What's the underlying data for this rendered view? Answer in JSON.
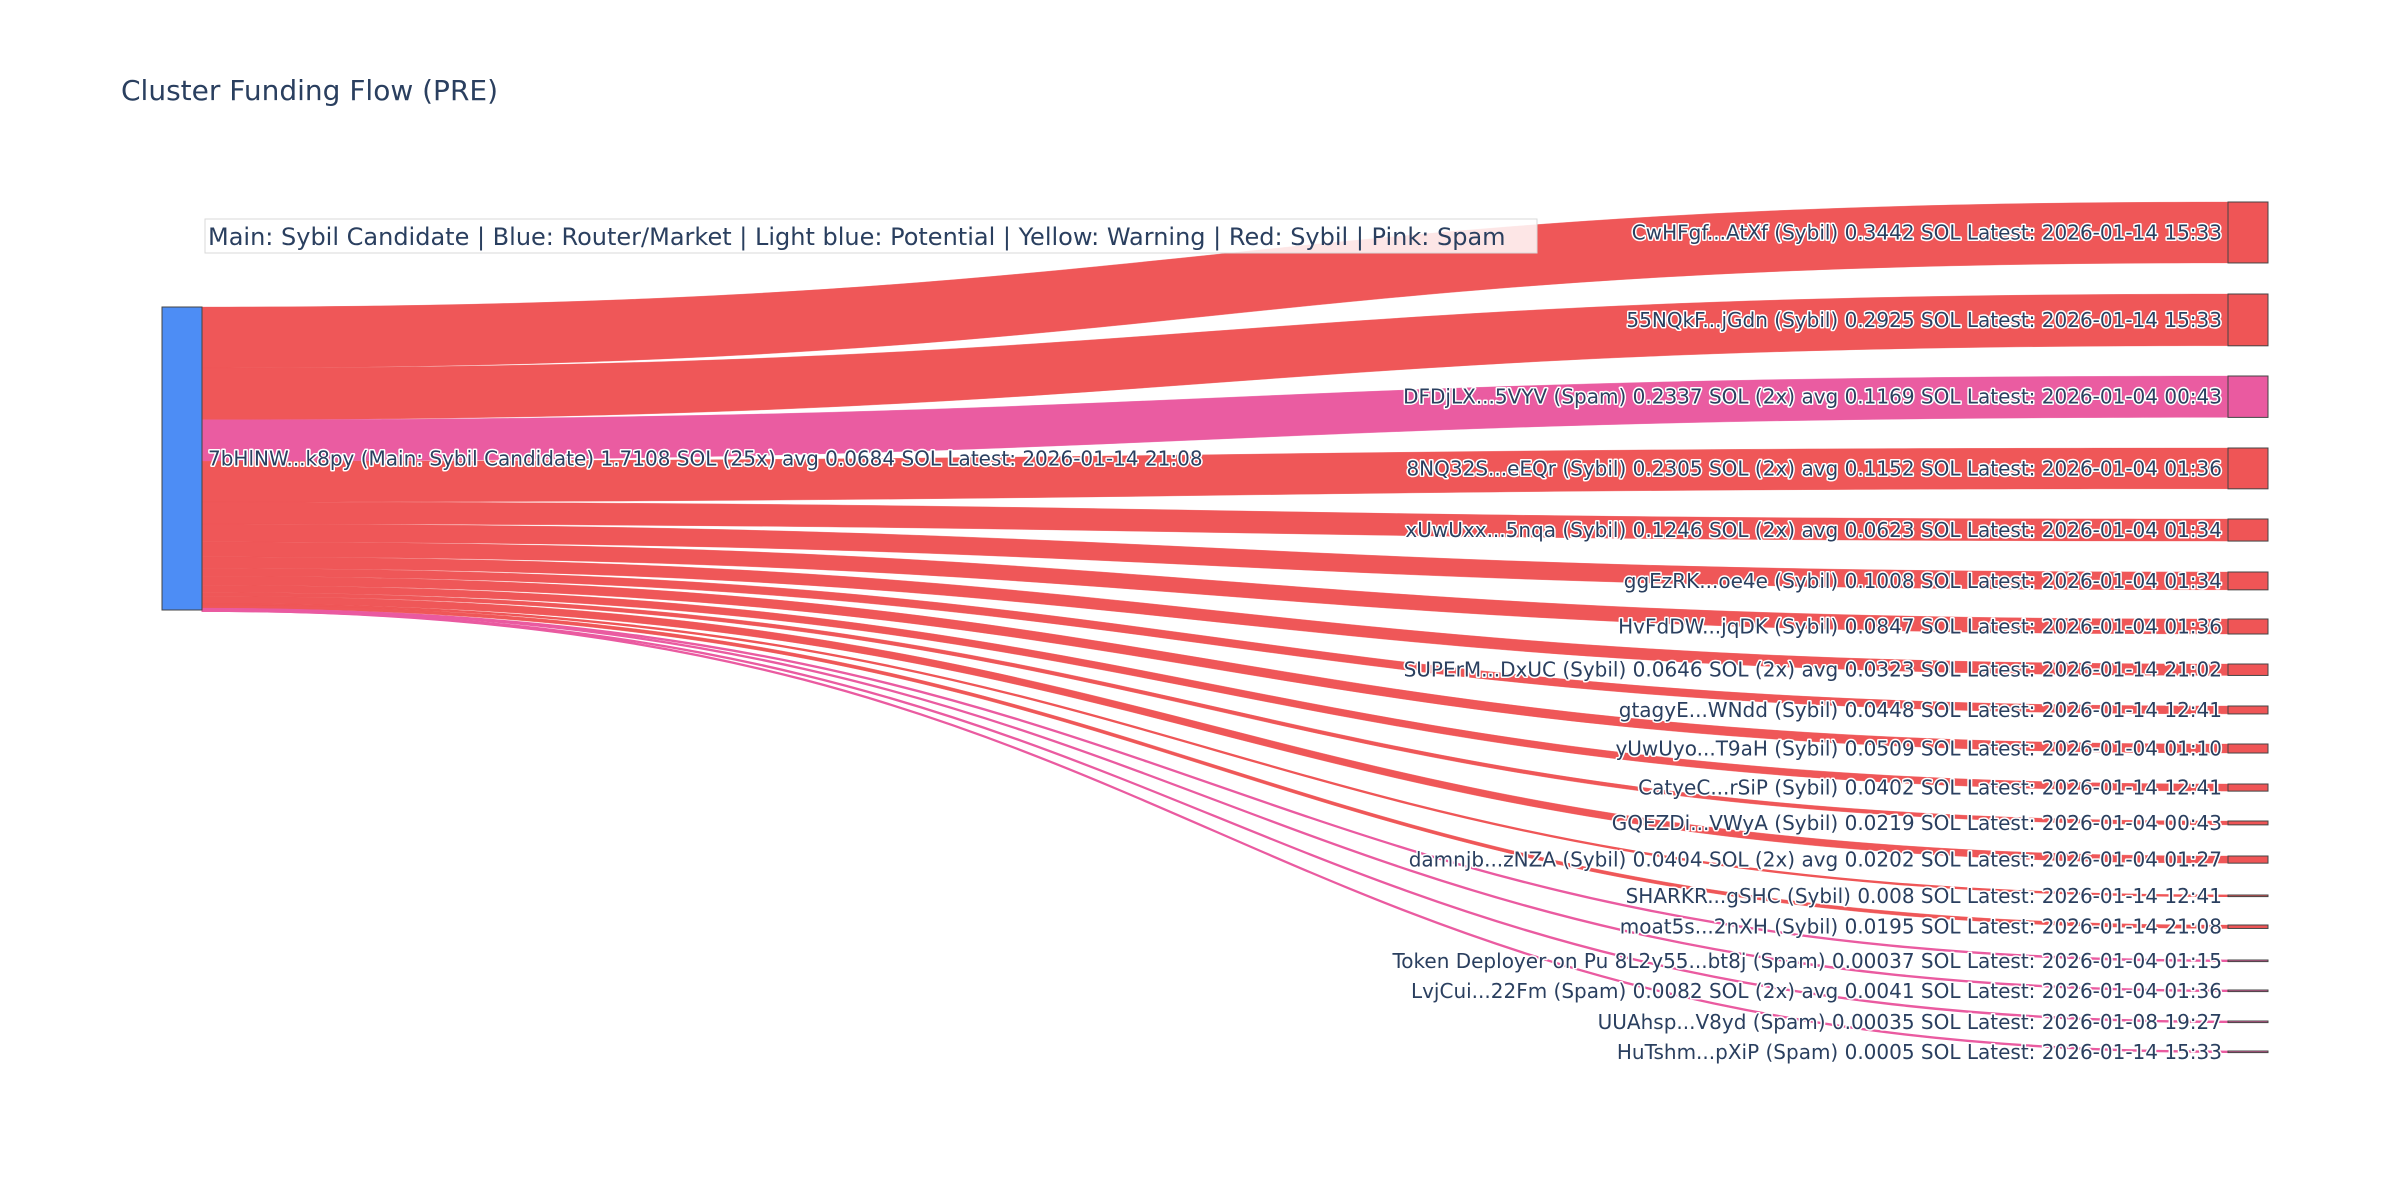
{
  "chart_data": {
    "type": "sankey",
    "title": "Cluster Funding Flow (PRE)",
    "annotation": "Main: Sybil Candidate  |  Blue: Router/Market | Light blue: Potential | Yellow: Warning | Red: Sybil | Pink: Spam",
    "colors": {
      "router": "#4d8df5",
      "sybil": "#ef5556",
      "spam": "#ea5aa0",
      "label": "#2a3f5f"
    },
    "source": {
      "label": "7bHlNW...k8py (Main: Sybil Candidate) 1.7108 SOL (25x) avg 0.0684 SOL Latest: 2026-01-14 21:08",
      "category": "router",
      "value": 1.7108
    },
    "targets": [
      {
        "label": "CwHFgf...AtXf (Sybil) 0.3442 SOL Latest: 2026-01-14 15:33",
        "value": 0.3442,
        "category": "sybil"
      },
      {
        "label": "55NQkF...jGdn (Sybil) 0.2925 SOL Latest: 2026-01-14 15:33",
        "value": 0.2925,
        "category": "sybil"
      },
      {
        "label": "DFDjLX...5VYV (Spam) 0.2337 SOL (2x) avg 0.1169 SOL Latest: 2026-01-04 00:43",
        "value": 0.2337,
        "category": "spam"
      },
      {
        "label": "8NQ32S...eEQr (Sybil) 0.2305 SOL (2x) avg 0.1152 SOL Latest: 2026-01-04 01:36",
        "value": 0.2305,
        "category": "sybil"
      },
      {
        "label": "xUwUxx...5nqa (Sybil) 0.1246 SOL (2x) avg 0.0623 SOL Latest: 2026-01-04 01:34",
        "value": 0.1246,
        "category": "sybil"
      },
      {
        "label": "ggEzRK...oe4e (Sybil) 0.1008 SOL Latest: 2026-01-04 01:34",
        "value": 0.1008,
        "category": "sybil"
      },
      {
        "label": "HvFdDW...jqDK (Sybil) 0.0847 SOL Latest: 2026-01-04 01:36",
        "value": 0.0847,
        "category": "sybil"
      },
      {
        "label": "SUPErM...DxUC (Sybil) 0.0646 SOL (2x) avg 0.0323 SOL Latest: 2026-01-14 21:02",
        "value": 0.0646,
        "category": "sybil"
      },
      {
        "label": "gtagyE...WNdd (Sybil) 0.0448 SOL Latest: 2026-01-14 12:41",
        "value": 0.0448,
        "category": "sybil"
      },
      {
        "label": "yUwUyo...T9aH (Sybil) 0.0509 SOL Latest: 2026-01-04 01:10",
        "value": 0.0509,
        "category": "sybil"
      },
      {
        "label": "CatyeC...rSiP (Sybil) 0.0402 SOL Latest: 2026-01-14 12:41",
        "value": 0.0402,
        "category": "sybil"
      },
      {
        "label": "GQEZDi...VWyA (Sybil) 0.0219 SOL Latest: 2026-01-04 00:43",
        "value": 0.0219,
        "category": "sybil"
      },
      {
        "label": "damnjb...zNZA (Sybil) 0.0404 SOL (2x) avg 0.0202 SOL Latest: 2026-01-04 01:27",
        "value": 0.0404,
        "category": "sybil"
      },
      {
        "label": "SHARKR...gSHC (Sybil) 0.008 SOL Latest: 2026-01-14 12:41",
        "value": 0.008,
        "category": "sybil"
      },
      {
        "label": "moat5s...2nXH (Sybil) 0.0195 SOL Latest: 2026-01-14 21:08",
        "value": 0.0195,
        "category": "sybil"
      },
      {
        "label": "Token Deployer on Pu 8L2y55...bt8j (Spam) 0.00037 SOL Latest: 2026-01-04 01:15",
        "value": 0.00037,
        "category": "spam"
      },
      {
        "label": "LvjCui...22Fm (Spam) 0.0082 SOL (2x) avg 0.0041 SOL Latest: 2026-01-04 01:36",
        "value": 0.0082,
        "category": "spam"
      },
      {
        "label": "UUAhsp...V8yd (Spam) 0.00035 SOL Latest: 2026-01-08 19:27",
        "value": 0.00035,
        "category": "spam"
      },
      {
        "label": "HuTshm...pXiP (Spam) 0.0005 SOL Latest: 2026-01-14 15:33",
        "value": 0.0005,
        "category": "spam"
      }
    ]
  }
}
